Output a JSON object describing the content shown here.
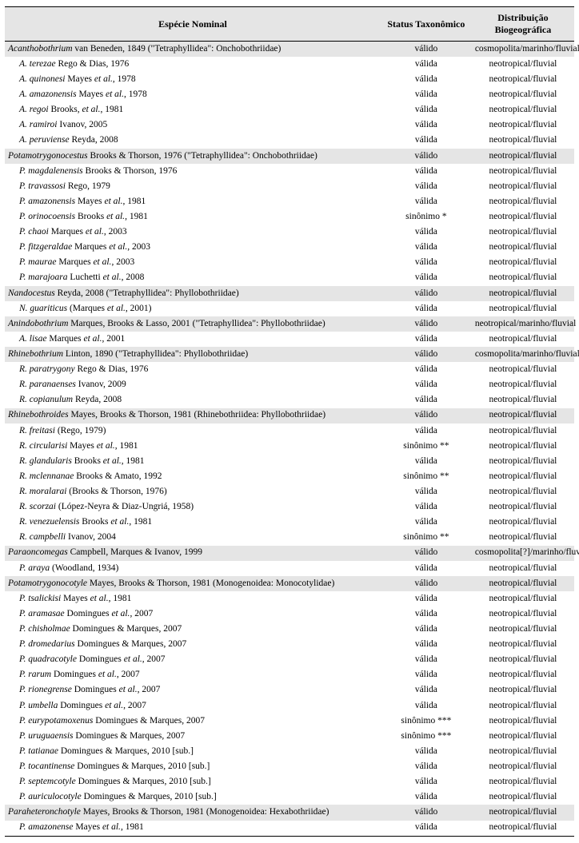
{
  "header": {
    "col_name": "Espécie Nominal",
    "col_status": "Status Taxonômico",
    "col_dist": "Distribuição Biogeográfica"
  },
  "groups": [
    {
      "genus_italic": "Acanthobothrium",
      "genus_plain": " van Beneden, 1849  (\"Tetraphyllidea\": Onchobothriidae)",
      "status": "válido",
      "dist": "cosmopolita/marinho/fluvial",
      "species": [
        {
          "name_italic": "A. terezae",
          "name_plain": " Rego & Dias, 1976",
          "status": "válida",
          "dist": "neotropical/fluvial"
        },
        {
          "name_italic": "A. quinonesi",
          "name_plain": " Mayes et al., 1978",
          "status": "válida",
          "dist": "neotropical/fluvial",
          "et_al": true
        },
        {
          "name_italic": "A. amazonensis",
          "name_plain": " Mayes et al., 1978",
          "status": "válida",
          "dist": "neotropical/fluvial",
          "et_al": true
        },
        {
          "name_italic": "A. regoi",
          "name_plain": " Brooks, et al., 1981",
          "status": "válida",
          "dist": "neotropical/fluvial",
          "et_al": true
        },
        {
          "name_italic": "A. ramiroi",
          "name_plain": " Ivanov, 2005",
          "status": "válida",
          "dist": "neotropical/fluvial"
        },
        {
          "name_italic": "A. peruviense",
          "name_plain": " Reyda, 2008",
          "status": "válida",
          "dist": "neotropical/fluvial"
        }
      ]
    },
    {
      "genus_italic": "Potamotrygonocestus",
      "genus_plain": " Brooks & Thorson, 1976  (\"Tetraphyllidea\": Onchobothriidae)",
      "status": "válido",
      "dist": "neotropical/fluvial",
      "species": [
        {
          "name_italic": "P. magdalenensis",
          "name_plain": " Brooks & Thorson, 1976",
          "status": "válida",
          "dist": "neotropical/fluvial"
        },
        {
          "name_italic": "P. travassosi",
          "name_plain": " Rego, 1979",
          "status": "válida",
          "dist": "neotropical/fluvial"
        },
        {
          "name_italic": "P. amazonensis",
          "name_plain": " Mayes et al., 1981",
          "status": "válida",
          "dist": "neotropical/fluvial",
          "et_al": true
        },
        {
          "name_italic": "P. orinocoensis",
          "name_plain": " Brooks et al., 1981",
          "status": "sinônimo *",
          "dist": "neotropical/fluvial",
          "et_al": true
        },
        {
          "name_italic": "P. chaoi",
          "name_plain": " Marques et al., 2003",
          "status": "válida",
          "dist": "neotropical/fluvial",
          "et_al": true
        },
        {
          "name_italic": "P. fitzgeraldae",
          "name_plain": " Marques et al., 2003",
          "status": "válida",
          "dist": "neotropical/fluvial",
          "et_al": true
        },
        {
          "name_italic": "P. maurae",
          "name_plain": " Marques et al., 2003",
          "status": "válida",
          "dist": "neotropical/fluvial",
          "et_al": true
        },
        {
          "name_italic": "P. marajoara",
          "name_plain": " Luchetti et al., 2008",
          "status": "válida",
          "dist": "neotropical/fluvial",
          "et_al": true
        }
      ]
    },
    {
      "genus_italic": "Nandocestus",
      "genus_plain": " Reyda, 2008   (\"Tetraphyllidea\": Phyllobothriidae)",
      "status": "válido",
      "dist": "neotropical/fluvial",
      "species": [
        {
          "name_italic": "N. guariticus",
          "name_plain": " (Marques et al., 2001)",
          "status": "válida",
          "dist": "neotropical/fluvial",
          "et_al": true
        }
      ]
    },
    {
      "genus_italic": "Anindobothrium",
      "genus_plain": " Marques, Brooks & Lasso, 2001   (\"Tetraphyllidea\": Phyllobothriidae)",
      "status": "válido",
      "dist": "neotropical/marinho/fluvial",
      "species": [
        {
          "name_italic": "A. lisae",
          "name_plain": " Marques et al., 2001",
          "status": "válida",
          "dist": "neotropical/fluvial",
          "et_al": true
        }
      ]
    },
    {
      "genus_italic": "Rhinebothrium",
      "genus_plain": " Linton, 1890    (\"Tetraphyllidea\": Phyllobothriidae)",
      "status": "válido",
      "dist": "cosmopolita/marinho/fluvial",
      "species": [
        {
          "name_italic": "R. paratrygony",
          "name_plain": " Rego & Dias, 1976",
          "status": "válida",
          "dist": "neotropical/fluvial"
        },
        {
          "name_italic": "R. paranaenses",
          "name_plain": " Ivanov, 2009",
          "status": "válida",
          "dist": "neotropical/fluvial"
        },
        {
          "name_italic": "R. copianulum",
          "name_plain": " Reyda, 2008",
          "status": "válida",
          "dist": "neotropical/fluvial"
        }
      ]
    },
    {
      "genus_italic": "Rhinebothroides",
      "genus_plain": " Mayes, Brooks & Thorson, 1981   (Rhinebothriidea: Phyllobothriidae)",
      "status": "válido",
      "dist": "neotropical/fluvial",
      "species": [
        {
          "name_italic": "R. freitasi",
          "name_plain": " (Rego, 1979)",
          "status": "válida",
          "dist": "neotropical/fluvial"
        },
        {
          "name_italic": "R. circularisi",
          "name_plain": " Mayes et al., 1981",
          "status": "sinônimo **",
          "dist": "neotropical/fluvial",
          "et_al": true
        },
        {
          "name_italic": "R. glandularis",
          "name_plain": " Brooks et al., 1981",
          "status": "válida",
          "dist": "neotropical/fluvial",
          "et_al": true
        },
        {
          "name_italic": "R. mclennanae",
          "name_plain": " Brooks & Amato, 1992",
          "status": "sinônimo **",
          "dist": "neotropical/fluvial"
        },
        {
          "name_italic": "R. moralarai",
          "name_plain": " (Brooks & Thorson, 1976)",
          "status": "válida",
          "dist": "neotropical/fluvial"
        },
        {
          "name_italic": "R. scorzai",
          "name_plain": " (López-Neyra & Diaz-Ungriá, 1958)",
          "status": "válida",
          "dist": "neotropical/fluvial"
        },
        {
          "name_italic": "R. venezuelensis",
          "name_plain": " Brooks et al., 1981",
          "status": "válida",
          "dist": "neotropical/fluvial",
          "et_al": true
        },
        {
          "name_italic": "R. campbelli",
          "name_plain": " Ivanov, 2004",
          "status": "sinônimo **",
          "dist": "neotropical/fluvial"
        }
      ]
    },
    {
      "genus_italic": "Paraoncomegas",
      "genus_plain": " Campbell, Marques & Ivanov, 1999",
      "status": "válido",
      "dist": "cosmopolita[?]/marinho/fluvial",
      "species": [
        {
          "name_italic": "P. araya",
          "name_plain": " (Woodland, 1934)",
          "status": "válida",
          "dist": "neotropical/fluvial"
        }
      ]
    },
    {
      "genus_italic": "Potamotrygonocotyle",
      "genus_plain": " Mayes, Brooks & Thorson, 1981   (Monogenoidea: Monocotylidae)",
      "status": "válido",
      "dist": "neotropical/fluvial",
      "species": [
        {
          "name_italic": "P. tsalickisi",
          "name_plain": " Mayes et al., 1981",
          "status": "válida",
          "dist": "neotropical/fluvial",
          "et_al": true
        },
        {
          "name_italic": "P. aramasae",
          "name_plain": " Domingues et al., 2007",
          "status": "válida",
          "dist": "neotropical/fluvial",
          "et_al": true
        },
        {
          "name_italic": "P. chisholmae",
          "name_plain": " Domingues & Marques, 2007",
          "status": "válida",
          "dist": "neotropical/fluvial"
        },
        {
          "name_italic": "P. dromedarius",
          "name_plain": " Domingues & Marques, 2007",
          "status": "válida",
          "dist": "neotropical/fluvial"
        },
        {
          "name_italic": "P. quadracotyle",
          "name_plain": " Domingues et al., 2007",
          "status": "válida",
          "dist": "neotropical/fluvial",
          "et_al": true
        },
        {
          "name_italic": "P. rarum",
          "name_plain": " Domingues et al., 2007",
          "status": "válida",
          "dist": "neotropical/fluvial",
          "et_al": true
        },
        {
          "name_italic": "P. rionegrense",
          "name_plain": " Domingues et al., 2007",
          "status": "válida",
          "dist": "neotropical/fluvial",
          "et_al": true
        },
        {
          "name_italic": "P. umbella",
          "name_plain": " Domingues et al., 2007",
          "status": "válida",
          "dist": "neotropical/fluvial",
          "et_al": true
        },
        {
          "name_italic": "P. eurypotamoxenus",
          "name_plain": " Domingues & Marques, 2007",
          "status": "sinônimo ***",
          "dist": "neotropical/fluvial"
        },
        {
          "name_italic": "P. uruguaensis",
          "name_plain": " Domingues & Marques, 2007",
          "status": "sinônimo ***",
          "dist": "neotropical/fluvial"
        },
        {
          "name_italic": "P. tatianae",
          "name_plain": "  Domingues & Marques, 2010 [sub.]",
          "status": "válida",
          "dist": "neotropical/fluvial"
        },
        {
          "name_italic": "P. tocantinense",
          "name_plain": "  Domingues & Marques, 2010 [sub.]",
          "status": "válida",
          "dist": "neotropical/fluvial"
        },
        {
          "name_italic": "P. septemcotyle",
          "name_plain": "  Domingues & Marques, 2010 [sub.]",
          "status": "válida",
          "dist": "neotropical/fluvial"
        },
        {
          "name_italic": "P. auriculocotyle",
          "name_plain": "  Domingues & Marques, 2010 [sub.]",
          "status": "válida",
          "dist": "neotropical/fluvial"
        }
      ]
    },
    {
      "genus_italic": "Paraheteronchotyle",
      "genus_plain": " Mayes, Brooks & Thorson, 1981   (Monogenoidea: Hexabothriidae)",
      "status": "válido",
      "dist": "neotropical/fluvial",
      "species": [
        {
          "name_italic": "P. amazonense",
          "name_plain": " Mayes et al., 1981",
          "status": "válida",
          "dist": "neotropical/fluvial",
          "et_al": true
        }
      ]
    }
  ]
}
